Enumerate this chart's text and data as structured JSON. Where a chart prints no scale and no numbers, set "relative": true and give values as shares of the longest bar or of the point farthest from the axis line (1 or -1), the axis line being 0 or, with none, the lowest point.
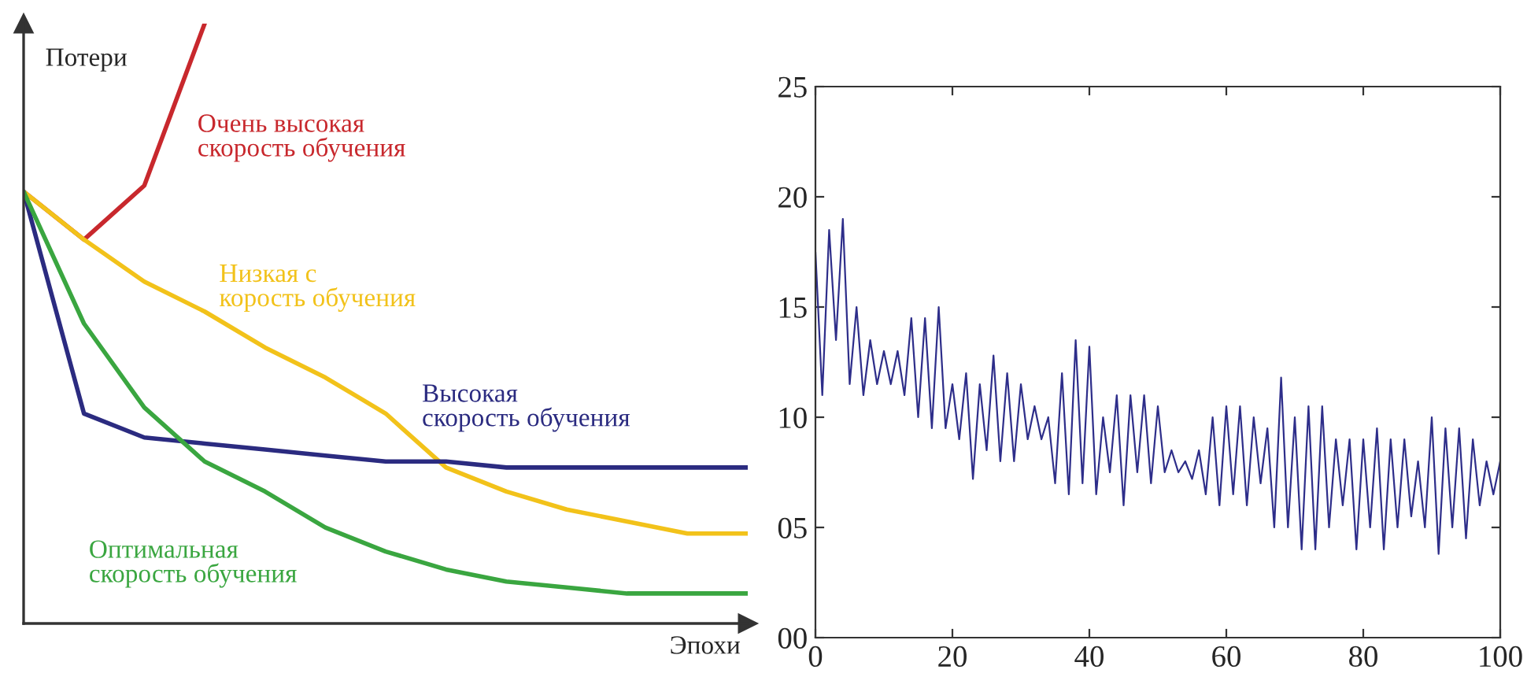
{
  "chart_data": [
    {
      "type": "line",
      "relative": true,
      "xlabel": "Эпохи",
      "ylabel": "Потери",
      "grid": false,
      "legend": false,
      "marker": "none",
      "line_style": "solid",
      "categories": [
        null,
        null,
        null,
        null,
        null,
        null,
        null,
        null,
        null,
        null,
        null,
        null,
        null
      ],
      "series": [
        {
          "name": "Очень высокая\nскорость обучения",
          "color": "#c8282d",
          "values": [
            0.72,
            0.64,
            0.73,
            1.0,
            null,
            null,
            null,
            null,
            null,
            null,
            null,
            null,
            null
          ]
        },
        {
          "name": "Низкая с\nкорость обучения",
          "color": "#f2c21a",
          "values": [
            0.72,
            0.64,
            0.57,
            0.52,
            0.46,
            0.41,
            0.35,
            0.26,
            0.22,
            0.19,
            0.17,
            0.15,
            0.15
          ]
        },
        {
          "name": "Высокая\nскорость обучения",
          "color": "#2b2b80",
          "values": [
            0.72,
            0.35,
            0.31,
            0.3,
            0.29,
            0.28,
            0.27,
            0.27,
            0.26,
            0.26,
            0.26,
            0.26,
            0.26
          ]
        },
        {
          "name": "Оптимальная\nскорость обучения",
          "color": "#3aa640",
          "values": [
            0.72,
            0.5,
            0.36,
            0.27,
            0.22,
            0.16,
            0.12,
            0.09,
            0.07,
            0.06,
            0.05,
            0.05,
            0.05
          ]
        }
      ]
    },
    {
      "type": "line",
      "grid": false,
      "legend": false,
      "marker": "none",
      "line_style": "solid",
      "xlim": [
        0,
        100
      ],
      "xticks": [
        0,
        20,
        40,
        60,
        80,
        100
      ],
      "ylim": [
        0,
        25
      ],
      "yticks": [
        {
          "value": 0,
          "label": "00"
        },
        {
          "value": 5,
          "label": "05"
        },
        {
          "value": 10,
          "label": "10"
        },
        {
          "value": 15,
          "label": "15"
        },
        {
          "value": 20,
          "label": "20"
        },
        {
          "value": 25,
          "label": "25"
        }
      ],
      "series": [
        {
          "color": "#2e2e8a",
          "x": [
            0,
            1,
            2,
            3,
            4,
            5,
            6,
            7,
            8,
            9,
            10,
            11,
            12,
            13,
            14,
            15,
            16,
            17,
            18,
            19,
            20,
            21,
            22,
            23,
            24,
            25,
            26,
            27,
            28,
            29,
            30,
            31,
            32,
            33,
            34,
            35,
            36,
            37,
            38,
            39,
            40,
            41,
            42,
            43,
            44,
            45,
            46,
            47,
            48,
            49,
            50,
            51,
            52,
            53,
            54,
            55,
            56,
            57,
            58,
            59,
            60,
            61,
            62,
            63,
            64,
            65,
            66,
            67,
            68,
            69,
            70,
            71,
            72,
            73,
            74,
            75,
            76,
            77,
            78,
            79,
            80,
            81,
            82,
            83,
            84,
            85,
            86,
            87,
            88,
            89,
            90,
            91,
            92,
            93,
            94,
            95,
            96,
            97,
            98,
            99,
            100
          ],
          "values": [
            17.5,
            11,
            18.5,
            13.5,
            19,
            11.5,
            15,
            11,
            13.5,
            11.5,
            13,
            11.5,
            13,
            11,
            14.5,
            10,
            14.5,
            9.5,
            15,
            9.5,
            11.5,
            9,
            12,
            7.2,
            11.5,
            8.5,
            12.8,
            8,
            12,
            8,
            11.5,
            9,
            10.5,
            9,
            10,
            7,
            12,
            6.5,
            13.5,
            7,
            13.2,
            6.5,
            10,
            7.5,
            11,
            6,
            11,
            7.5,
            11,
            7,
            10.5,
            7.5,
            8.5,
            7.5,
            8,
            7.2,
            8.5,
            6.5,
            10,
            6,
            10.5,
            6.5,
            10.5,
            6,
            10,
            7,
            9.5,
            5,
            11.8,
            5,
            10,
            4,
            10.5,
            4,
            10.5,
            5,
            9,
            6,
            9,
            4,
            9,
            5,
            9.5,
            4,
            9,
            5,
            9,
            5.5,
            8,
            5,
            10,
            3.8,
            9.5,
            5,
            9.5,
            4.5,
            9,
            6,
            8,
            6.5,
            8
          ]
        }
      ]
    }
  ]
}
